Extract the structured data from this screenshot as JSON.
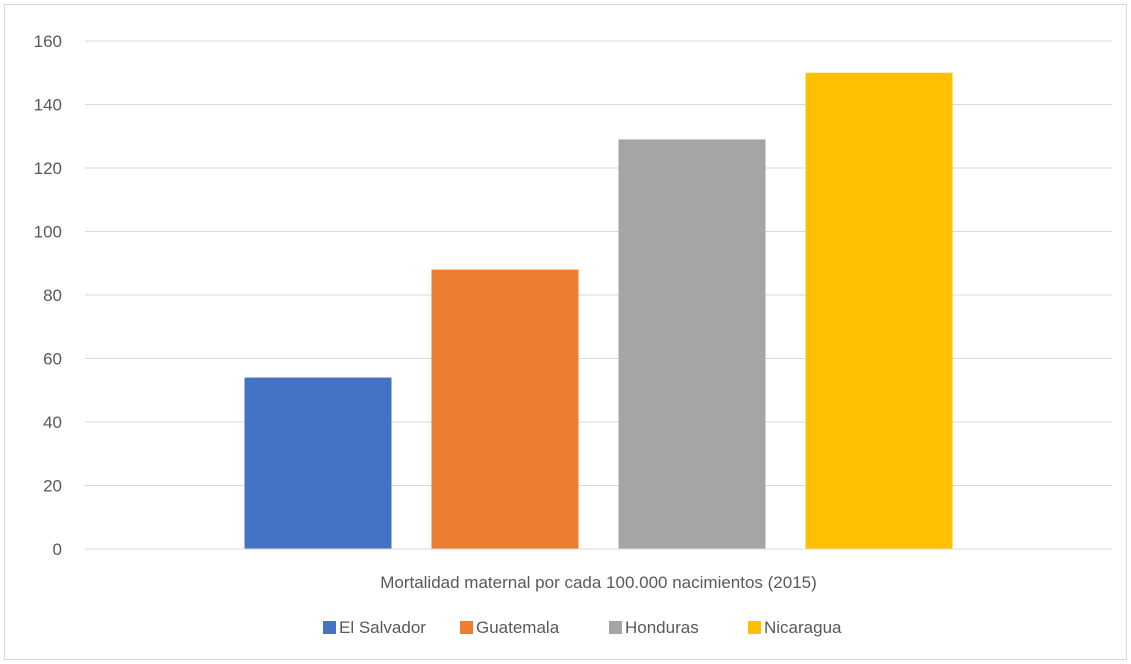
{
  "chart_data": {
    "type": "bar",
    "xlabel": "Mortalidad maternal por cada 100.000 nacimientos (2015)",
    "ylabel": "",
    "ylim": [
      0,
      160
    ],
    "yticks": [
      0,
      20,
      40,
      60,
      80,
      100,
      120,
      140,
      160
    ],
    "grid": true,
    "legend": "bottom",
    "series": [
      {
        "name": "El Salvador",
        "values": [
          54
        ],
        "color": "#4472C4"
      },
      {
        "name": "Guatemala",
        "values": [
          88
        ],
        "color": "#ED7D31"
      },
      {
        "name": "Honduras",
        "values": [
          129
        ],
        "color": "#A5A5A5"
      },
      {
        "name": "Nicaragua",
        "values": [
          150
        ],
        "color": "#FFC000"
      }
    ]
  }
}
